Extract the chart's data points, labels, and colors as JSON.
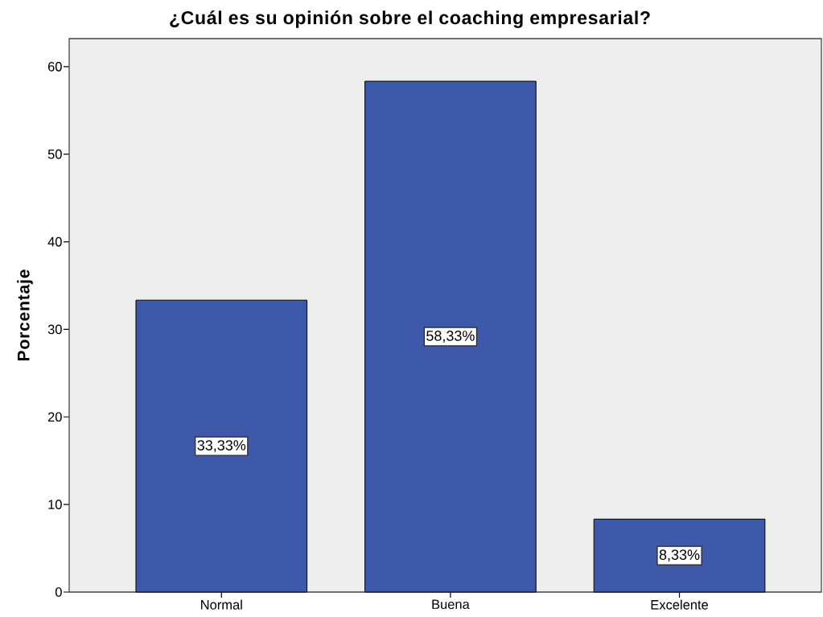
{
  "chart_data": {
    "type": "bar",
    "title": "¿Cuál es su opinión sobre el coaching empresarial?",
    "ylabel": "Porcentaje",
    "categories": [
      "Normal",
      "Buena",
      "Excelente"
    ],
    "values": [
      33.33,
      58.33,
      8.33
    ],
    "value_labels": [
      "33,33%",
      "58,33%",
      "8,33%"
    ],
    "color": "#3e58aa",
    "ylim": [
      0,
      63.2
    ],
    "yticks": [
      0,
      10,
      20,
      30,
      40,
      50,
      60
    ]
  }
}
